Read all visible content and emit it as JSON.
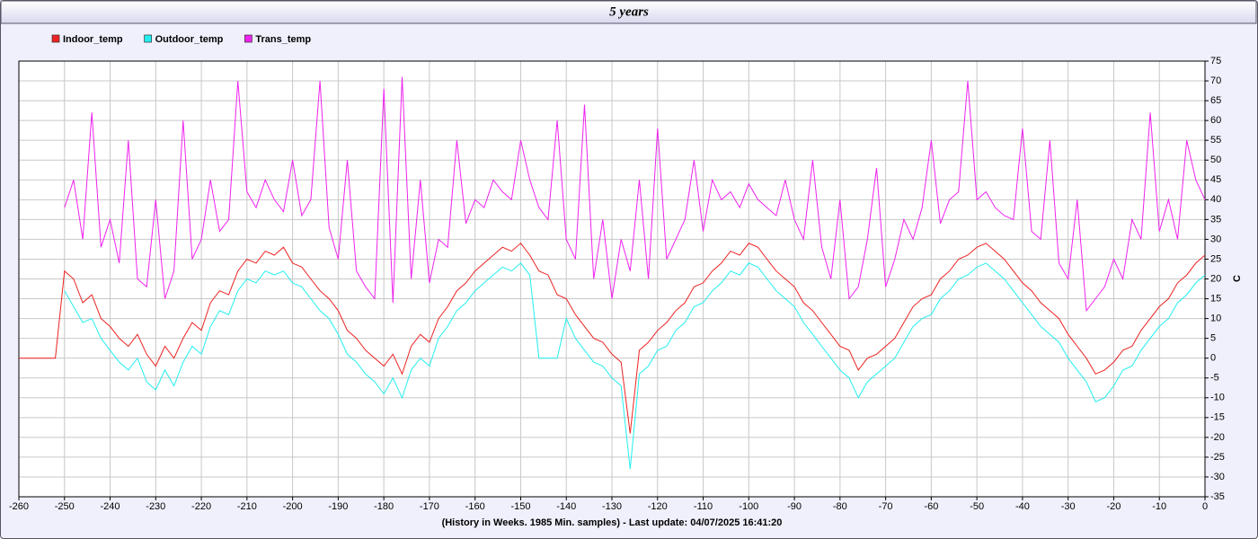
{
  "chart_data": {
    "type": "line",
    "title": "5 years",
    "x_label": "(History in Weeks. 1985 Min. samples) - Last update: 04/07/2025 16:41:20",
    "y_label": "C",
    "grid": true,
    "legend": "top-left",
    "xlim": [
      -260,
      0
    ],
    "xticks": [
      -260,
      -250,
      -240,
      -230,
      -220,
      -210,
      -200,
      -190,
      -180,
      -170,
      -160,
      -150,
      -140,
      -130,
      -120,
      -110,
      -100,
      -90,
      -80,
      -70,
      -60,
      -50,
      -40,
      -30,
      -20,
      -10,
      0
    ],
    "ylim": [
      -35,
      75
    ],
    "yticks": [
      -35,
      -30,
      -25,
      -20,
      -15,
      -10,
      -5,
      0,
      5,
      10,
      15,
      20,
      25,
      30,
      35,
      40,
      45,
      50,
      55,
      60,
      65,
      70,
      75
    ],
    "x": [
      -260,
      -258,
      -256,
      -254,
      -252,
      -250,
      -248,
      -246,
      -244,
      -242,
      -240,
      -238,
      -236,
      -234,
      -232,
      -230,
      -228,
      -226,
      -224,
      -222,
      -220,
      -218,
      -216,
      -214,
      -212,
      -210,
      -208,
      -206,
      -204,
      -202,
      -200,
      -198,
      -196,
      -194,
      -192,
      -190,
      -188,
      -186,
      -184,
      -182,
      -180,
      -178,
      -176,
      -174,
      -172,
      -170,
      -168,
      -166,
      -164,
      -162,
      -160,
      -158,
      -156,
      -154,
      -152,
      -150,
      -148,
      -146,
      -144,
      -142,
      -140,
      -138,
      -136,
      -134,
      -132,
      -130,
      -128,
      -126,
      -124,
      -122,
      -120,
      -118,
      -116,
      -114,
      -112,
      -110,
      -108,
      -106,
      -104,
      -102,
      -100,
      -98,
      -96,
      -94,
      -92,
      -90,
      -88,
      -86,
      -84,
      -82,
      -80,
      -78,
      -76,
      -74,
      -72,
      -70,
      -68,
      -66,
      -64,
      -62,
      -60,
      -58,
      -56,
      -54,
      -52,
      -50,
      -48,
      -46,
      -44,
      -42,
      -40,
      -38,
      -36,
      -34,
      -32,
      -30,
      -28,
      -26,
      -24,
      -22,
      -20,
      -18,
      -16,
      -14,
      -12,
      -10,
      -8,
      -6,
      -4,
      -2,
      0
    ],
    "series": [
      {
        "name": "Indoor_temp",
        "color": "#ee2222",
        "values": [
          0,
          0,
          0,
          0,
          0,
          22,
          20,
          14,
          16,
          10,
          8,
          5,
          3,
          6,
          1,
          -2,
          3,
          0,
          5,
          9,
          7,
          14,
          17,
          16,
          22,
          25,
          24,
          27,
          26,
          28,
          24,
          23,
          20,
          17,
          15,
          12,
          7,
          5,
          2,
          0,
          -2,
          1,
          -4,
          3,
          6,
          4,
          10,
          13,
          17,
          19,
          22,
          24,
          26,
          28,
          27,
          29,
          26,
          22,
          21,
          16,
          15,
          11,
          8,
          5,
          4,
          1,
          -1,
          -19,
          2,
          4,
          7,
          9,
          12,
          14,
          18,
          19,
          22,
          24,
          27,
          26,
          29,
          28,
          25,
          22,
          20,
          18,
          14,
          12,
          9,
          6,
          3,
          2,
          -3,
          0,
          1,
          3,
          5,
          9,
          13,
          15,
          16,
          20,
          22,
          25,
          26,
          28,
          29,
          27,
          25,
          22,
          19,
          17,
          14,
          12,
          10,
          6,
          3,
          0,
          -4,
          -3,
          -1,
          2,
          3,
          7,
          10,
          13,
          15,
          19,
          21,
          24,
          26
        ]
      },
      {
        "name": "Outdoor_temp",
        "color": "#22eeee",
        "values": [
          null,
          null,
          null,
          null,
          null,
          17,
          13,
          9,
          10,
          5,
          2,
          -1,
          -3,
          0,
          -6,
          -8,
          -3,
          -7,
          -1,
          3,
          1,
          8,
          12,
          11,
          17,
          20,
          19,
          22,
          21,
          22,
          19,
          18,
          15,
          12,
          10,
          6,
          1,
          -1,
          -4,
          -6,
          -9,
          -5,
          -10,
          -3,
          0,
          -2,
          5,
          8,
          12,
          14,
          17,
          19,
          21,
          23,
          22,
          24,
          21,
          0,
          0,
          0,
          10,
          5,
          2,
          -1,
          -2,
          -5,
          -7,
          -28,
          -4,
          -2,
          2,
          3,
          7,
          9,
          13,
          14,
          17,
          19,
          22,
          21,
          24,
          23,
          20,
          17,
          15,
          13,
          9,
          6,
          3,
          0,
          -3,
          -5,
          -10,
          -6,
          -4,
          -2,
          0,
          4,
          8,
          10,
          11,
          15,
          17,
          20,
          21,
          23,
          24,
          22,
          20,
          17,
          14,
          11,
          8,
          6,
          4,
          0,
          -3,
          -6,
          -11,
          -10,
          -7,
          -3,
          -2,
          2,
          5,
          8,
          10,
          14,
          16,
          19,
          21
        ]
      },
      {
        "name": "Trans_temp",
        "color": "#ee22ee",
        "values": [
          null,
          null,
          null,
          null,
          null,
          38,
          45,
          30,
          62,
          28,
          35,
          24,
          55,
          20,
          18,
          40,
          15,
          22,
          60,
          25,
          30,
          45,
          32,
          35,
          70,
          42,
          38,
          45,
          40,
          37,
          50,
          36,
          40,
          70,
          33,
          25,
          50,
          22,
          18,
          15,
          68,
          14,
          71,
          20,
          45,
          19,
          30,
          28,
          55,
          34,
          40,
          38,
          45,
          42,
          40,
          55,
          45,
          38,
          35,
          60,
          30,
          25,
          64,
          20,
          35,
          15,
          30,
          22,
          45,
          20,
          58,
          25,
          30,
          35,
          50,
          32,
          45,
          40,
          42,
          38,
          44,
          40,
          38,
          36,
          45,
          35,
          30,
          50,
          28,
          20,
          40,
          15,
          18,
          30,
          48,
          18,
          25,
          35,
          30,
          38,
          55,
          34,
          40,
          42,
          70,
          40,
          42,
          38,
          36,
          35,
          58,
          32,
          30,
          55,
          24,
          20,
          40,
          12,
          15,
          18,
          25,
          20,
          35,
          30,
          62,
          32,
          40,
          30,
          55,
          45,
          40
        ]
      }
    ]
  }
}
